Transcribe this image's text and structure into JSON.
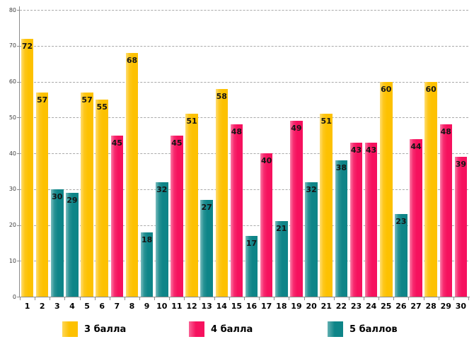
{
  "chart_data": {
    "type": "bar",
    "title": "",
    "xlabel": "",
    "ylabel": "",
    "categories": [
      "1",
      "2",
      "3",
      "4",
      "5",
      "6",
      "7",
      "8",
      "9",
      "10",
      "11",
      "12",
      "13",
      "14",
      "15",
      "16",
      "17",
      "18",
      "19",
      "20",
      "21",
      "22",
      "23",
      "24",
      "25",
      "26",
      "27",
      "28",
      "29",
      "30"
    ],
    "values": [
      72,
      57,
      30,
      29,
      57,
      55,
      45,
      68,
      18,
      32,
      45,
      51,
      27,
      58,
      48,
      17,
      40,
      21,
      49,
      32,
      51,
      38,
      43,
      43,
      60,
      23,
      44,
      60,
      48,
      39
    ],
    "bar_series": [
      "3 балла",
      "3 балла",
      "5 баллов",
      "5 баллов",
      "3 балла",
      "3 балла",
      "4 балла",
      "3 балла",
      "5 баллов",
      "5 баллов",
      "4 балла",
      "3 балла",
      "5 баллов",
      "3 балла",
      "4 балла",
      "5 баллов",
      "4 балла",
      "5 баллов",
      "4 балла",
      "5 баллов",
      "3 балла",
      "5 баллов",
      "4 балла",
      "4 балла",
      "3 балла",
      "5 баллов",
      "4 балла",
      "3 балла",
      "4 балла",
      "4 балла"
    ],
    "legend": [
      {
        "label": "3 балла",
        "color": "#FDC101"
      },
      {
        "label": "4 балла",
        "color": "#F6115E"
      },
      {
        "label": "5 баллов",
        "color": "#0E8588"
      }
    ],
    "ylim": [
      0,
      80
    ],
    "yticks": [
      0,
      10,
      20,
      30,
      40,
      50,
      60,
      70,
      80
    ],
    "grid": "horizontal-dashed",
    "legend_position": "bottom",
    "data_labels": "inside-top"
  }
}
